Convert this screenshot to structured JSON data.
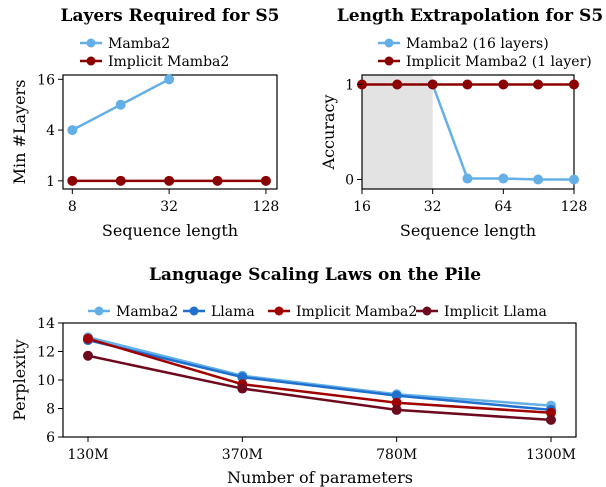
{
  "chart_data": [
    {
      "type": "line",
      "title": "Layers Required for S5",
      "xlabel": "Sequence length",
      "ylabel": "Min #Layers",
      "xscale": "log2",
      "yscale": "log2",
      "xlim": [
        7,
        150
      ],
      "ylim": [
        0.8,
        18
      ],
      "xticks": [
        8,
        32,
        128
      ],
      "xtick_labels": [
        "8",
        "32",
        "128"
      ],
      "yticks": [
        1,
        4,
        16
      ],
      "ytick_labels": [
        "1",
        "4",
        "16"
      ],
      "grid": false,
      "legend": "top-left-above",
      "series": [
        {
          "name": "Mamba2",
          "color": "#64b0e6",
          "x": [
            8,
            16,
            32
          ],
          "y": [
            4,
            8,
            16
          ]
        },
        {
          "name": "Implicit Mamba2",
          "color": "#8b0000",
          "x": [
            8,
            16,
            32,
            64,
            128
          ],
          "y": [
            1,
            1,
            1,
            1,
            1
          ]
        }
      ]
    },
    {
      "type": "line",
      "title": "Length Extrapolation for S5",
      "xlabel": "Sequence length",
      "ylabel": "Accuracy",
      "xscale": "log2",
      "xlim": [
        16,
        128
      ],
      "ylim": [
        -0.1,
        1.1
      ],
      "xticks": [
        16,
        32,
        64,
        128
      ],
      "xtick_labels": [
        "16",
        "32",
        "64",
        "128"
      ],
      "yticks": [
        0,
        1
      ],
      "ytick_labels": [
        "0",
        "1"
      ],
      "shaded_region": [
        16,
        32
      ],
      "shade_color": "#e3e3e3",
      "grid": false,
      "legend": "top-left-above",
      "series": [
        {
          "name": "Mamba2 (16 layers)",
          "color": "#64b0e6",
          "x": [
            32,
            45,
            64,
            90,
            128
          ],
          "y": [
            1.0,
            0.01,
            0.01,
            0.0,
            0.0
          ]
        },
        {
          "name": "Implicit Mamba2 (1 layer)",
          "color": "#8b0000",
          "x": [
            16,
            22.6,
            32,
            45,
            64,
            90,
            128
          ],
          "y": [
            1,
            1,
            1,
            1,
            1,
            1,
            1
          ]
        }
      ]
    },
    {
      "type": "line",
      "title": "Language Scaling Laws on the Pile",
      "xlabel": "Number of parameters",
      "ylabel": "Perplexity",
      "categories": [
        "130M",
        "370M",
        "780M",
        "1300M"
      ],
      "ylim": [
        6,
        14
      ],
      "yticks": [
        6,
        8,
        10,
        12,
        14
      ],
      "ytick_labels": [
        "6",
        "8",
        "10",
        "12",
        "14"
      ],
      "grid": false,
      "legend": "top-center-above",
      "series": [
        {
          "name": "Mamba2",
          "color": "#64b0e6",
          "values": [
            13.0,
            10.3,
            9.0,
            8.2
          ]
        },
        {
          "name": "Llama",
          "color": "#1f6fcf",
          "values": [
            12.8,
            10.2,
            8.9,
            7.9
          ]
        },
        {
          "name": "Implicit Mamba2",
          "color": "#a00000",
          "values": [
            12.9,
            9.7,
            8.4,
            7.7
          ]
        },
        {
          "name": "Implicit Llama",
          "color": "#6e0a1e",
          "values": [
            11.7,
            9.4,
            7.9,
            7.2
          ]
        }
      ]
    }
  ]
}
